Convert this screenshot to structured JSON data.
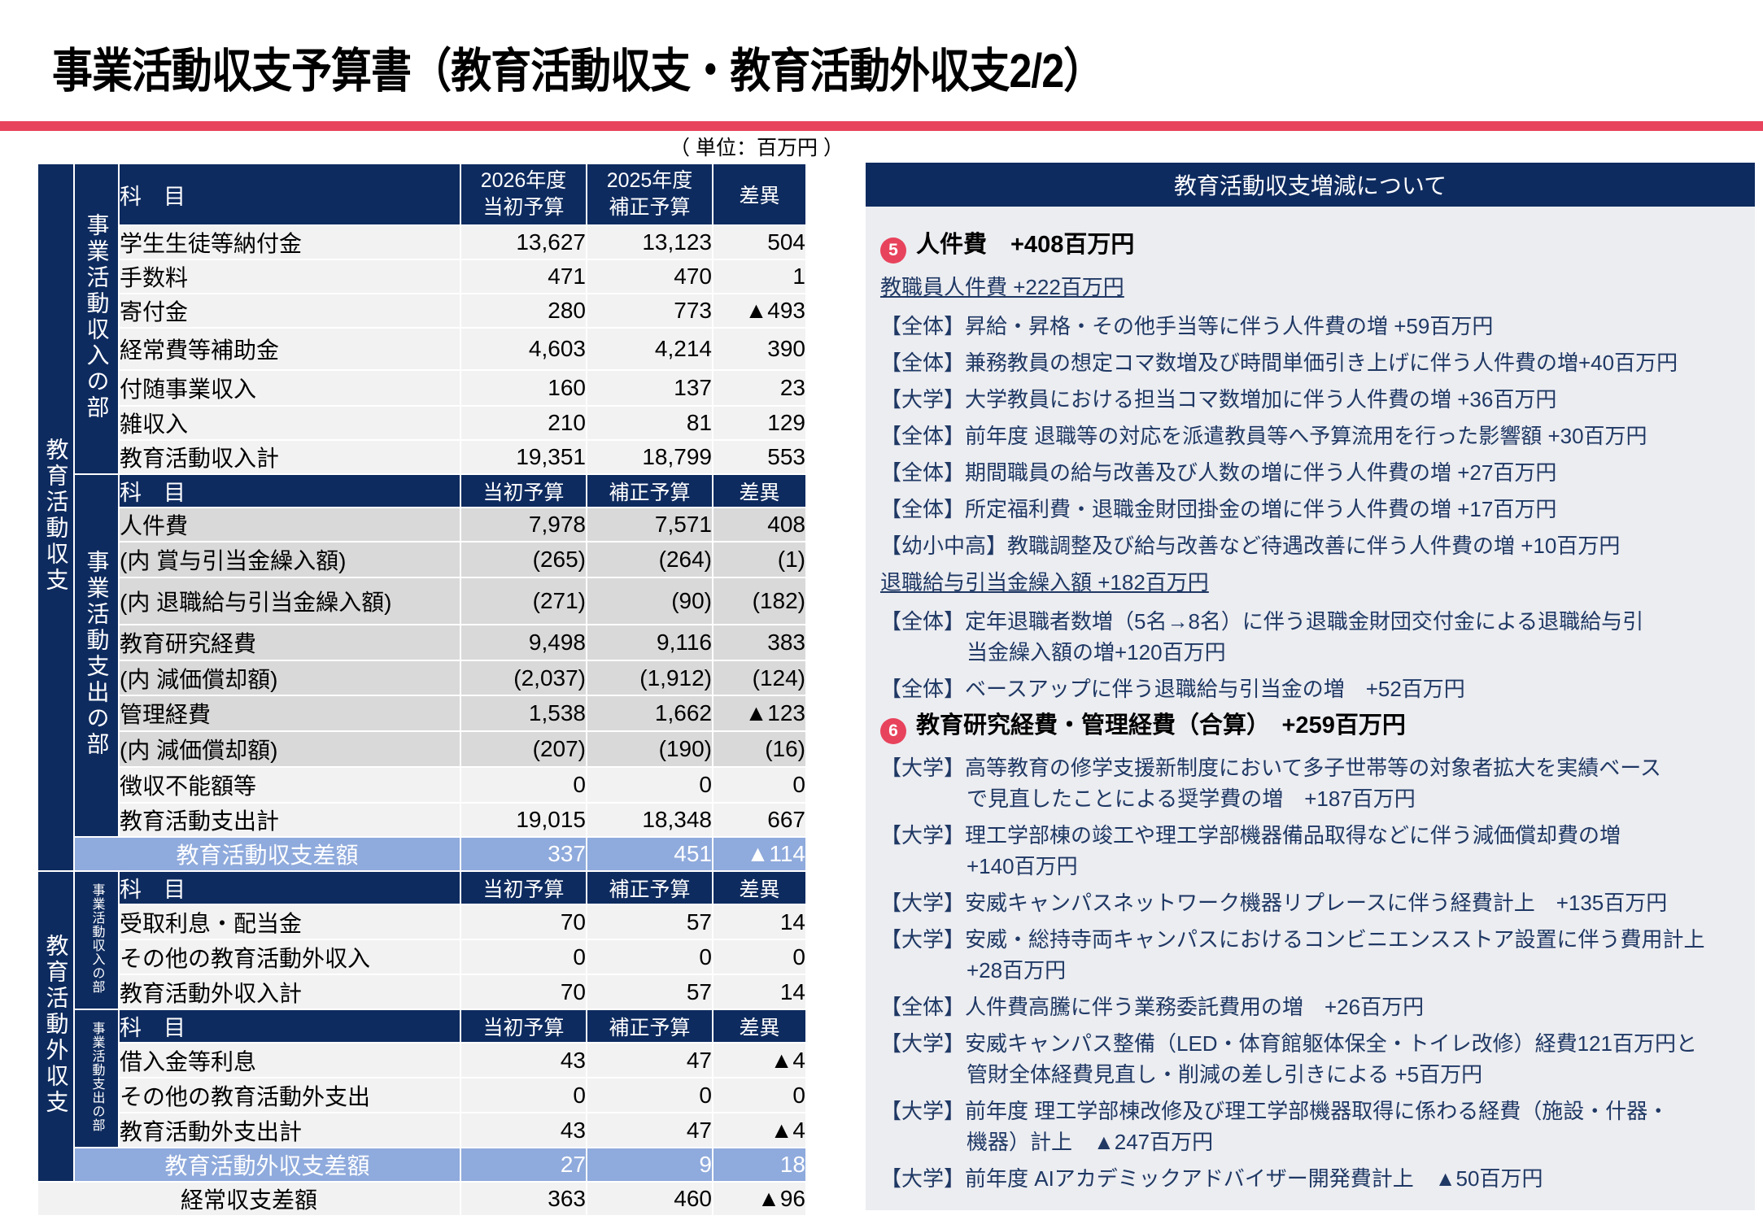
{
  "title": "事業活動収支予算書（教育活動収支・教育活動外収支2/2）",
  "unit_note": "（ 単位：百万円 ）",
  "colors": {
    "navy": "#0E2B5F",
    "accent_red": "#E8435C",
    "summary_blue": "#8FAADC",
    "row_light": "#F2F2F2",
    "row_shaded": "#D9D9D9",
    "panel_bg": "#ECEDF1",
    "panel_text": "#1F3864"
  },
  "table": {
    "headers": {
      "subject": "科　目",
      "col2026": [
        "2026年度",
        "当初予算"
      ],
      "col2025": [
        "2025年度",
        "補正予算"
      ],
      "v1_short": "当初予算",
      "v2_short": "補正予算",
      "diff": "差異"
    },
    "group_labels": {
      "activity": "教育活動収支",
      "activity_income": "事業活動収入の部",
      "activity_expense": "事業活動支出の部",
      "non_activity": "教育活動外収支",
      "non_activity_income": "事業活動収入の部",
      "non_activity_expense": "事業活動支出の部"
    },
    "income_rows": [
      {
        "label": "学生生徒等納付金",
        "v1": "13,627",
        "v2": "13,123",
        "diff": "504"
      },
      {
        "label": "手数料",
        "v1": "471",
        "v2": "470",
        "diff": "1"
      },
      {
        "label": "寄付金",
        "v1": "280",
        "v2": "773",
        "diff": "▲493"
      },
      {
        "label": "経常費等補助金",
        "v1": "4,603",
        "v2": "4,214",
        "diff": "390",
        "tall": true
      },
      {
        "label": "付随事業収入",
        "v1": "160",
        "v2": "137",
        "diff": "23"
      },
      {
        "label": "雑収入",
        "v1": "210",
        "v2": "81",
        "diff": "129"
      },
      {
        "label": "教育活動収入計",
        "v1": "19,351",
        "v2": "18,799",
        "diff": "553"
      }
    ],
    "expense_rows": [
      {
        "label": "人件費",
        "v1": "7,978",
        "v2": "7,571",
        "diff": "408",
        "shaded": true,
        "badge": "5"
      },
      {
        "label": "(内 賞与引当金繰入額)",
        "v1": "(265)",
        "v2": "(264)",
        "diff": "(1)",
        "shaded": true,
        "indent": true
      },
      {
        "label": "(内 退職給与引当金繰入額)",
        "v1": "(271)",
        "v2": "(90)",
        "diff": "(182)",
        "shaded": true,
        "indent": true,
        "tall": true
      },
      {
        "label": "教育研究経費",
        "v1": "9,498",
        "v2": "9,116",
        "diff": "383",
        "shaded": true,
        "badge": "6"
      },
      {
        "label": "(内 減価償却額)",
        "v1": "(2,037)",
        "v2": "(1,912)",
        "diff": "(124)",
        "shaded": true,
        "indent": true
      },
      {
        "label": "管理経費",
        "v1": "1,538",
        "v2": "1,662",
        "diff": "▲123",
        "shaded": true,
        "badge": "6"
      },
      {
        "label": "(内 減価償却額)",
        "v1": "(207)",
        "v2": "(190)",
        "diff": "(16)",
        "shaded": true,
        "indent": true
      },
      {
        "label": "徴収不能額等",
        "v1": "0",
        "v2": "0",
        "diff": "0"
      },
      {
        "label": "教育活動支出計",
        "v1": "19,015",
        "v2": "18,348",
        "diff": "667"
      }
    ],
    "summary_activity": {
      "label": "教育活動収支差額",
      "v1": "337",
      "v2": "451",
      "diff": "▲114"
    },
    "ext_income_rows": [
      {
        "label": "受取利息・配当金",
        "v1": "70",
        "v2": "57",
        "diff": "14"
      },
      {
        "label": "その他の教育活動外収入",
        "v1": "0",
        "v2": "0",
        "diff": "0"
      },
      {
        "label": "教育活動外収入計",
        "v1": "70",
        "v2": "57",
        "diff": "14"
      }
    ],
    "ext_expense_rows": [
      {
        "label": "借入金等利息",
        "v1": "43",
        "v2": "47",
        "diff": "▲4"
      },
      {
        "label": "その他の教育活動外支出",
        "v1": "0",
        "v2": "0",
        "diff": "0"
      },
      {
        "label": "教育活動外支出計",
        "v1": "43",
        "v2": "47",
        "diff": "▲4"
      }
    ],
    "summary_non_activity": {
      "label": "教育活動外収支差額",
      "v1": "27",
      "v2": "9",
      "diff": "18"
    },
    "total_row": {
      "label": "経常収支差額",
      "v1": "363",
      "v2": "460",
      "diff": "▲96"
    }
  },
  "panel": {
    "title": "教育活動収支増減について",
    "items": [
      {
        "type": "heading",
        "badge": "5",
        "text": "人件費　+408百万円"
      },
      {
        "type": "underline",
        "text": "教職員人件費 +222百万円"
      },
      {
        "type": "body",
        "text": "【全体】昇給・昇格・その他手当等に伴う人件費の増 +59百万円"
      },
      {
        "type": "body",
        "text": "【全体】兼務教員の想定コマ数増及び時間単価引き上げに伴う人件費の増+40百万円"
      },
      {
        "type": "body",
        "text": "【大学】大学教員における担当コマ数増加に伴う人件費の増 +36百万円"
      },
      {
        "type": "body",
        "text": "【全体】前年度 退職等の対応を派遣教員等へ予算流用を行った影響額 +30百万円"
      },
      {
        "type": "body",
        "text": "【全体】期間職員の給与改善及び人数の増に伴う人件費の増 +27百万円"
      },
      {
        "type": "body",
        "text": "【全体】所定福利費・退職金財団掛金の増に伴う人件費の増 +17百万円"
      },
      {
        "type": "body",
        "text": "【幼小中高】教職調整及び給与改善など待遇改善に伴う人件費の増 +10百万円"
      },
      {
        "type": "underline",
        "text": "退職給与引当金繰入額 +182百万円"
      },
      {
        "type": "body",
        "lines": [
          "【全体】定年退職者数増（5名→8名）に伴う退職金財団交付金による退職給与引",
          "当金繰入額の増+120百万円"
        ]
      },
      {
        "type": "body",
        "text": "【全体】ベースアップに伴う退職給与引当金の増　+52百万円"
      },
      {
        "type": "heading",
        "badge": "6",
        "text": "教育研究経費・管理経費（合算）　+259百万円"
      },
      {
        "type": "body",
        "lines": [
          "【大学】高等教育の修学支援新制度において多子世帯等の対象者拡大を実績ベース",
          "で見直したことによる奨学費の増　+187百万円"
        ]
      },
      {
        "type": "body",
        "lines": [
          "【大学】理工学部棟の竣工や理工学部機器備品取得などに伴う減価償却費の増",
          "+140百万円"
        ]
      },
      {
        "type": "body",
        "text": "【大学】安威キャンパスネットワーク機器リプレースに伴う経費計上　+135百万円"
      },
      {
        "type": "body",
        "lines": [
          "【大学】安威・総持寺両キャンパスにおけるコンビニエンスストア設置に伴う費用計上",
          "+28百万円"
        ]
      },
      {
        "type": "body",
        "text": "【全体】人件費高騰に伴う業務委託費用の増　+26百万円"
      },
      {
        "type": "body",
        "lines": [
          "【大学】安威キャンパス整備（LED・体育館躯体保全・トイレ改修）経費121百万円と",
          "管財全体経費見直し・削減の差し引きによる +5百万円"
        ]
      },
      {
        "type": "body",
        "lines": [
          "【大学】前年度 理工学部棟改修及び理工学部機器取得に係わる経費（施設・什器・",
          "機器）計上　▲247百万円"
        ]
      },
      {
        "type": "body",
        "text": "【大学】前年度 AIアカデミックアドバイザー開発費計上　▲50百万円"
      }
    ]
  }
}
